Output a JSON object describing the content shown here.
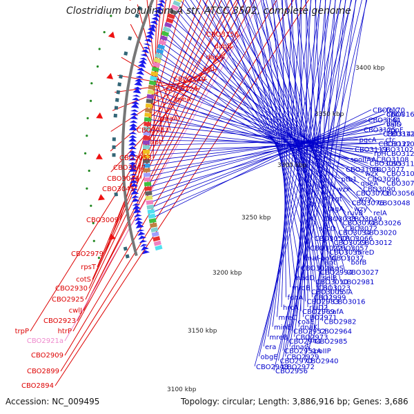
{
  "title": "Clostridium botulinum A str. ATCC 3502, complete genome",
  "footer": {
    "accession": "Accession: NC_009495",
    "topology": "Topology: circular; Length: 3,886,916 bp; Genes: 3,686"
  },
  "colors": {
    "label_left": "#dd0000",
    "label_right": "#0000cc",
    "label_rna": "#ee88cc",
    "backbone": "#777777",
    "cds_arrow": "#1a1aee",
    "feature_red": "#ee1111",
    "feature_green": "#228822"
  },
  "kbp_ticks": [
    "3400 kbp",
    "3350 kbp",
    "3300 kbp",
    "3250 kbp",
    "3200 kbp",
    "3150 kbp",
    "3100 kbp"
  ],
  "left_labels": [
    {
      "text": "CBO3156",
      "type": "gene"
    },
    {
      "text": "dapB",
      "type": "gene"
    },
    {
      "text": "dapA",
      "type": "gene"
    },
    {
      "text": "asd",
      "type": "gene"
    },
    {
      "text": "CBO3140",
      "type": "gene"
    },
    {
      "text": "CBO3124",
      "type": "gene"
    },
    {
      "text": "speA",
      "type": "gene"
    },
    {
      "text": "pdaA",
      "type": "gene"
    },
    {
      "text": "CBO3083",
      "type": "gene"
    },
    {
      "text": "hpt",
      "type": "gene"
    },
    {
      "text": "CBO3053",
      "type": "gene"
    },
    {
      "text": "CBO3047",
      "type": "gene"
    },
    {
      "text": "CBO3046",
      "type": "gene"
    },
    {
      "text": "CBO3045",
      "type": "gene"
    },
    {
      "text": "CBO3009",
      "type": "gene"
    },
    {
      "text": "CBO2979",
      "type": "gene"
    },
    {
      "text": "rpsT",
      "type": "gene"
    },
    {
      "text": "cotS",
      "type": "gene"
    },
    {
      "text": "CBO2930",
      "type": "gene"
    },
    {
      "text": "CBO2925",
      "type": "gene"
    },
    {
      "text": "cwlJ",
      "type": "gene"
    },
    {
      "text": "CBO2923",
      "type": "gene"
    },
    {
      "text": "htrP",
      "type": "gene"
    },
    {
      "text": "trpP",
      "type": "gene"
    },
    {
      "text": "CBO2921a",
      "type": "rna"
    },
    {
      "text": "CBO2909",
      "type": "gene"
    },
    {
      "text": "CBO2899",
      "type": "gene"
    },
    {
      "text": "CBO2894",
      "type": "gene"
    }
  ],
  "right_labels": [
    "CBO3170",
    "CBO3165",
    "folC",
    "oppA",
    "CBO3144",
    "valS",
    "infC",
    "hslO",
    "CBO3125",
    "CBO3141",
    "oppF",
    "CBO3120",
    "pgcA",
    "CBO3122",
    "ctc",
    "CBO3109",
    "CBO3119",
    "rplT",
    "CBO3102",
    "CBO3123",
    "spoIIAA",
    "CBO3095",
    "CBO3108",
    "CBO3117",
    "CBO3100",
    "wzx",
    "CBO3077",
    "CBO3107",
    "ptb1",
    "queA",
    "CBO3096",
    "CBO3078",
    "wzx",
    "CBO3073",
    "CBO3090",
    "CBO3056",
    "tgt",
    "CBO3076",
    "wzy",
    "CBO3048",
    "tagA",
    "ruvB",
    "wzy",
    "relA",
    "CBO3038",
    "CBO3074",
    "CBO3049",
    "CBO3026",
    "secD",
    "CBO3034",
    "CBO3072",
    "CBO3020",
    "CBO3050",
    "CBO3029",
    "CBO3066",
    "CBO3012",
    "CBO3022",
    "CBO3035",
    "CBO3057",
    "mreD",
    "maf-polA",
    "apt",
    "CBO3037",
    "bofB",
    "CBO3021",
    "CBO2994",
    "aspS",
    "CBO3027",
    "nadD",
    "CBO3010",
    "selB",
    "CBO2981",
    "mrdB",
    "CBO3005",
    "CBO3023",
    "holA",
    "fdhA",
    "CBO2983",
    "CBO2999",
    "CBO3016",
    "hrcA",
    "CBO2969",
    "rluD2",
    "cafA",
    "mreC",
    "coaE",
    "CBO2971",
    "CBO2982",
    "minE",
    "CBO2952",
    "dnaK",
    "CBO2964",
    "mreB",
    "CBO2944",
    "CBO2973",
    "CBO2985",
    "era",
    "CBO2951A",
    "dnaG",
    "spoIIP",
    "obgE",
    "CBO2970",
    "CBO2929",
    "CBO2940",
    "CBO2948",
    "CBO2956",
    "CBO2972"
  ]
}
